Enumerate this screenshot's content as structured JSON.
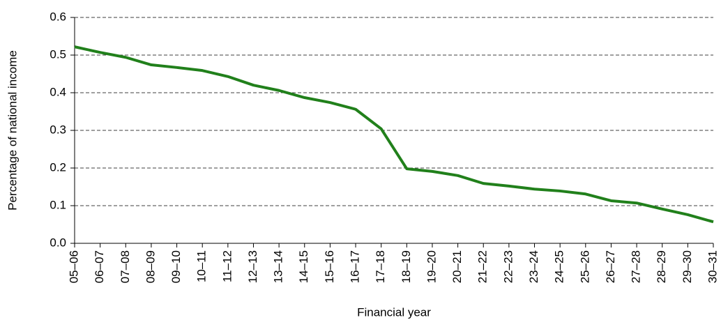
{
  "chart_data": {
    "type": "line",
    "y_label": "Percentage of national income",
    "x_label": "Financial year",
    "categories": [
      "05–06",
      "06–07",
      "07–08",
      "08–09",
      "09–10",
      "10–11",
      "11–12",
      "12–13",
      "13–14",
      "14–15",
      "15–16",
      "16–17",
      "17–18",
      "18–19",
      "19–20",
      "20–21",
      "21–22",
      "22–23",
      "23–24",
      "24–25",
      "25–26",
      "26–27",
      "27–28",
      "28–29",
      "29–30",
      "30–31"
    ],
    "values": [
      0.522,
      0.507,
      0.494,
      0.474,
      0.467,
      0.459,
      0.443,
      0.42,
      0.406,
      0.387,
      0.374,
      0.356,
      0.304,
      0.198,
      0.191,
      0.18,
      0.159,
      0.152,
      0.144,
      0.139,
      0.131,
      0.113,
      0.107,
      0.091,
      0.076,
      0.057
    ],
    "color": "#21801b",
    "ylim": [
      0,
      0.6
    ],
    "yticks": [
      {
        "value": 0,
        "label": "0.0"
      },
      0.1,
      0.2,
      0.3,
      0.4,
      0.5,
      0.6
    ],
    "grid": true
  }
}
